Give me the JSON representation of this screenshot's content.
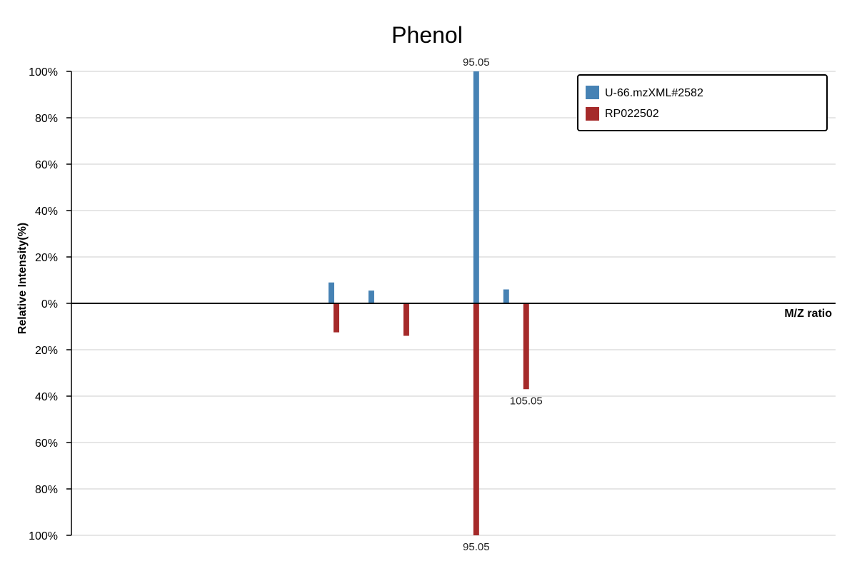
{
  "chart_data": {
    "type": "bar",
    "title": "Phenol",
    "xlabel": "M/Z ratio",
    "ylabel": "Relative Intensity(%)",
    "y_ticks_top": [
      "100%",
      "80%",
      "60%",
      "40%",
      "20%",
      "0%"
    ],
    "y_ticks_bottom": [
      "20%",
      "40%",
      "60%",
      "80%",
      "100%"
    ],
    "ylim_top": [
      0,
      100
    ],
    "ylim_bottom": [
      0,
      100
    ],
    "grid": true,
    "legend_position": "top-right",
    "series": [
      {
        "name": "U-66.mzXML#2582",
        "direction": "up",
        "color": "#4682b4",
        "peaks": [
          {
            "mz": 66.05,
            "intensity": 9,
            "label": ""
          },
          {
            "mz": 74.05,
            "intensity": 5.5,
            "label": ""
          },
          {
            "mz": 95.05,
            "intensity": 100,
            "label": "95.05"
          },
          {
            "mz": 101.05,
            "intensity": 6,
            "label": ""
          }
        ]
      },
      {
        "name": "RP022502",
        "direction": "down",
        "color": "#a52a2a",
        "peaks": [
          {
            "mz": 67.05,
            "intensity": 12.5,
            "label": ""
          },
          {
            "mz": 81.05,
            "intensity": 14,
            "label": ""
          },
          {
            "mz": 95.05,
            "intensity": 100,
            "label": "95.05"
          },
          {
            "mz": 105.05,
            "intensity": 37,
            "label": "105.05"
          }
        ]
      }
    ]
  }
}
